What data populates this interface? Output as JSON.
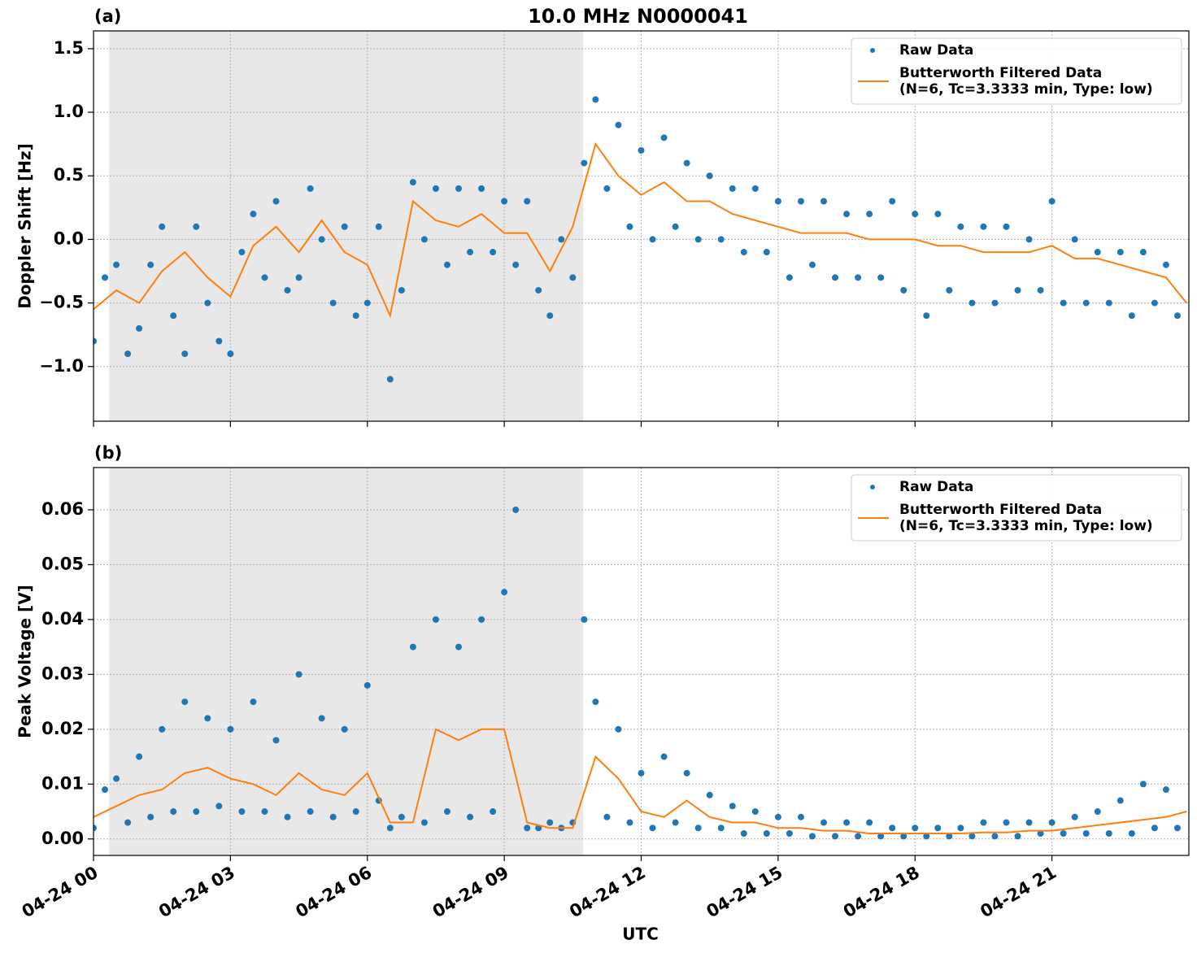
{
  "chart_data": [
    {
      "type": "scatter_line",
      "panel_label": "(a)",
      "title": "10.0 MHz N0000041",
      "ylabel": "Doppler Shift [Hz]",
      "xlim": [
        0,
        24
      ],
      "xticks": [
        0,
        3,
        6,
        9,
        12,
        15,
        18,
        21
      ],
      "ylim": [
        -1.43,
        1.64
      ],
      "yticks": [
        {
          "value": -1.0,
          "label": "−1.0"
        },
        {
          "value": -0.5,
          "label": "−0.5"
        },
        {
          "value": 0,
          "label": "0.0"
        },
        0.5,
        {
          "value": 1.0,
          "label": "1.0"
        },
        1.5
      ],
      "grid": true,
      "legend": "upper right",
      "shaded_span": [
        0.34,
        10.73
      ],
      "series": [
        {
          "name": "Raw Data",
          "color": "#1f77b4",
          "style": "markers",
          "x": [
            0,
            0.25,
            0.5,
            0.75,
            1,
            1.25,
            1.5,
            1.75,
            2,
            2.25,
            2.5,
            2.75,
            3,
            3.25,
            3.5,
            3.75,
            4,
            4.25,
            4.5,
            4.75,
            5,
            5.25,
            5.5,
            5.75,
            6,
            6.25,
            6.5,
            6.75,
            7,
            7.25,
            7.5,
            7.75,
            8,
            8.25,
            8.5,
            8.75,
            9,
            9.25,
            9.5,
            9.75,
            10,
            10.25,
            10.5,
            10.75,
            11,
            11.25,
            11.5,
            11.75,
            12,
            12.25,
            12.5,
            12.75,
            13,
            13.25,
            13.5,
            13.75,
            14,
            14.25,
            14.5,
            14.75,
            15,
            15.25,
            15.5,
            15.75,
            16,
            16.25,
            16.5,
            16.75,
            17,
            17.25,
            17.5,
            17.75,
            18,
            18.25,
            18.5,
            18.75,
            19,
            19.25,
            19.5,
            19.75,
            20,
            20.25,
            20.5,
            20.75,
            21,
            21.25,
            21.5,
            21.75,
            22,
            22.25,
            22.5,
            22.75,
            23,
            23.25,
            23.5,
            23.75
          ],
          "values": [
            -0.8,
            -0.3,
            -0.2,
            -0.9,
            -0.7,
            -0.2,
            0.1,
            -0.6,
            -0.9,
            0.1,
            -0.5,
            -0.8,
            -0.9,
            -0.1,
            0.2,
            -0.3,
            0.3,
            -0.4,
            -0.3,
            0.4,
            0.0,
            -0.5,
            0.1,
            -0.6,
            -0.5,
            0.1,
            -1.1,
            -0.4,
            0.45,
            0.0,
            0.4,
            -0.2,
            0.4,
            -0.1,
            0.4,
            -0.1,
            0.3,
            -0.2,
            0.3,
            -0.4,
            -0.6,
            0.0,
            -0.3,
            0.6,
            1.1,
            0.4,
            0.9,
            0.1,
            0.7,
            0.0,
            0.8,
            0.1,
            0.6,
            0.0,
            0.5,
            0.0,
            0.4,
            -0.1,
            0.4,
            -0.1,
            0.3,
            -0.3,
            0.3,
            -0.2,
            0.3,
            -0.3,
            0.2,
            -0.3,
            0.2,
            -0.3,
            0.3,
            -0.4,
            0.2,
            -0.6,
            0.2,
            -0.4,
            0.1,
            -0.5,
            0.1,
            -0.5,
            0.1,
            -0.4,
            0.0,
            -0.4,
            0.3,
            -0.5,
            0.0,
            -0.5,
            -0.1,
            -0.5,
            -0.1,
            -0.6,
            -0.1,
            -0.5,
            -0.2,
            -0.6
          ]
        },
        {
          "name": "Butterworth Filtered Data\n(N=6, Tc=3.3333 min, Type: low)",
          "color": "#ff7f0e",
          "style": "line",
          "x": [
            0,
            0.5,
            1,
            1.5,
            2,
            2.5,
            3,
            3.5,
            4,
            4.5,
            5,
            5.5,
            6,
            6.5,
            7,
            7.5,
            8,
            8.5,
            9,
            9.5,
            10,
            10.5,
            11,
            11.5,
            12,
            12.5,
            13,
            13.5,
            14,
            14.5,
            15,
            15.5,
            16,
            16.5,
            17,
            17.5,
            18,
            18.5,
            19,
            19.5,
            20,
            20.5,
            21,
            21.5,
            22,
            22.5,
            23,
            23.5,
            23.95
          ],
          "values": [
            -0.55,
            -0.4,
            -0.5,
            -0.25,
            -0.1,
            -0.3,
            -0.45,
            -0.05,
            0.1,
            -0.1,
            0.15,
            -0.1,
            -0.2,
            -0.6,
            0.3,
            0.15,
            0.1,
            0.2,
            0.05,
            0.05,
            -0.25,
            0.1,
            0.75,
            0.5,
            0.35,
            0.45,
            0.3,
            0.3,
            0.2,
            0.15,
            0.1,
            0.05,
            0.05,
            0.05,
            0.0,
            0.0,
            0.0,
            -0.05,
            -0.05,
            -0.1,
            -0.1,
            -0.1,
            -0.05,
            -0.15,
            -0.15,
            -0.2,
            -0.25,
            -0.3,
            -0.5
          ]
        }
      ]
    },
    {
      "type": "scatter_line",
      "panel_label": "(b)",
      "ylabel": "Peak Voltage [V]",
      "xlabel": "UTC",
      "xlim": [
        0,
        24
      ],
      "xticks": [
        {
          "value": 0,
          "label": "04-24 00"
        },
        {
          "value": 3,
          "label": "04-24 03"
        },
        {
          "value": 6,
          "label": "04-24 06"
        },
        {
          "value": 9,
          "label": "04-24 09"
        },
        {
          "value": 12,
          "label": "04-24 12"
        },
        {
          "value": 15,
          "label": "04-24 15"
        },
        {
          "value": 18,
          "label": "04-24 18"
        },
        {
          "value": 21,
          "label": "04-24 21"
        }
      ],
      "ylim": [
        -0.003,
        0.0677
      ],
      "yticks": [
        {
          "value": 0,
          "label": "0.00"
        },
        0.01,
        {
          "value": 0.02,
          "label": "0.02"
        },
        0.03,
        0.04,
        0.05,
        0.06
      ],
      "grid": true,
      "legend": "upper right",
      "shaded_span": [
        0.34,
        10.73
      ],
      "series": [
        {
          "name": "Raw Data",
          "color": "#1f77b4",
          "style": "markers",
          "x": [
            0,
            0.25,
            0.5,
            0.75,
            1,
            1.25,
            1.5,
            1.75,
            2,
            2.25,
            2.5,
            2.75,
            3,
            3.25,
            3.5,
            3.75,
            4,
            4.25,
            4.5,
            4.75,
            5,
            5.25,
            5.5,
            5.75,
            6,
            6.25,
            6.5,
            6.75,
            7,
            7.25,
            7.5,
            7.75,
            8,
            8.25,
            8.5,
            8.75,
            9,
            9.25,
            9.5,
            9.75,
            10,
            10.25,
            10.5,
            10.75,
            11,
            11.25,
            11.5,
            11.75,
            12,
            12.25,
            12.5,
            12.75,
            13,
            13.25,
            13.5,
            13.75,
            14,
            14.25,
            14.5,
            14.75,
            15,
            15.25,
            15.5,
            15.75,
            16,
            16.25,
            16.5,
            16.75,
            17,
            17.25,
            17.5,
            17.75,
            18,
            18.25,
            18.5,
            18.75,
            19,
            19.25,
            19.5,
            19.75,
            20,
            20.25,
            20.5,
            20.75,
            21,
            21.25,
            21.5,
            21.75,
            22,
            22.25,
            22.5,
            22.75,
            23,
            23.25,
            23.5,
            23.75
          ],
          "values": [
            0.002,
            0.009,
            0.011,
            0.003,
            0.015,
            0.004,
            0.02,
            0.005,
            0.025,
            0.005,
            0.022,
            0.006,
            0.02,
            0.005,
            0.025,
            0.005,
            0.018,
            0.004,
            0.03,
            0.005,
            0.022,
            0.004,
            0.02,
            0.005,
            0.028,
            0.007,
            0.002,
            0.004,
            0.035,
            0.003,
            0.04,
            0.005,
            0.035,
            0.004,
            0.04,
            0.005,
            0.045,
            0.06,
            0.002,
            0.002,
            0.003,
            0.002,
            0.003,
            0.04,
            0.025,
            0.004,
            0.02,
            0.003,
            0.012,
            0.002,
            0.015,
            0.003,
            0.012,
            0.002,
            0.008,
            0.002,
            0.006,
            0.001,
            0.005,
            0.001,
            0.004,
            0.001,
            0.004,
            0.0005,
            0.003,
            0.0005,
            0.003,
            0.0005,
            0.003,
            0.0005,
            0.002,
            0.0005,
            0.002,
            0.0005,
            0.002,
            0.0005,
            0.002,
            0.0005,
            0.003,
            0.0005,
            0.003,
            0.0005,
            0.003,
            0.001,
            0.003,
            0.001,
            0.004,
            0.001,
            0.005,
            0.001,
            0.007,
            0.001,
            0.01,
            0.002,
            0.009,
            0.002
          ]
        },
        {
          "name": "Butterworth Filtered Data\n(N=6, Tc=3.3333 min, Type: low)",
          "color": "#ff7f0e",
          "style": "line",
          "x": [
            0,
            0.5,
            1,
            1.5,
            2,
            2.5,
            3,
            3.5,
            4,
            4.5,
            5,
            5.5,
            6,
            6.5,
            7,
            7.5,
            8,
            8.5,
            9,
            9.5,
            10,
            10.5,
            11,
            11.5,
            12,
            12.5,
            13,
            13.5,
            14,
            14.5,
            15,
            15.5,
            16,
            16.5,
            17,
            17.5,
            18,
            18.5,
            19,
            19.5,
            20,
            20.5,
            21,
            21.5,
            22,
            22.5,
            23,
            23.5,
            23.95
          ],
          "values": [
            0.004,
            0.006,
            0.008,
            0.009,
            0.012,
            0.013,
            0.011,
            0.01,
            0.008,
            0.012,
            0.009,
            0.008,
            0.012,
            0.003,
            0.003,
            0.02,
            0.018,
            0.02,
            0.02,
            0.003,
            0.002,
            0.002,
            0.015,
            0.011,
            0.005,
            0.004,
            0.007,
            0.004,
            0.003,
            0.003,
            0.002,
            0.002,
            0.0015,
            0.0015,
            0.001,
            0.001,
            0.001,
            0.001,
            0.001,
            0.0012,
            0.0012,
            0.0015,
            0.0015,
            0.002,
            0.0025,
            0.003,
            0.0035,
            0.004,
            0.005
          ]
        }
      ]
    }
  ]
}
